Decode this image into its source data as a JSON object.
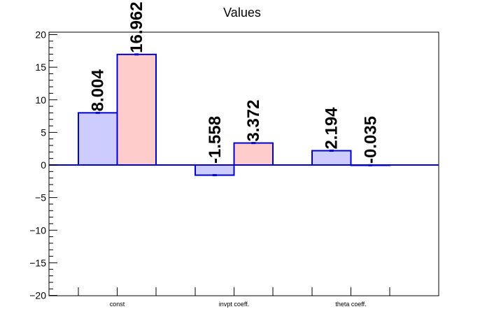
{
  "chart_data": {
    "type": "bar",
    "title": "Values",
    "categories": [
      "const",
      "invpt coeff.",
      "theta coeff."
    ],
    "series": [
      {
        "values": [
          8.004,
          -1.558,
          2.194
        ],
        "labels": [
          "8.004",
          "-1.558",
          "2.194"
        ],
        "fill": "#ccccff",
        "stroke": "#0000cc"
      },
      {
        "values": [
          16.962,
          3.372,
          -0.035
        ],
        "labels": [
          "16.962",
          "3.372",
          "-0.035"
        ],
        "fill": "#ffcccc",
        "stroke": "#0000cc"
      }
    ],
    "y_ticks": [
      "20",
      "15",
      "10",
      "5",
      "0",
      "−5",
      "−10",
      "−15",
      "−20"
    ],
    "ylim": [
      -20,
      20
    ],
    "grid": false,
    "legend": "none"
  }
}
